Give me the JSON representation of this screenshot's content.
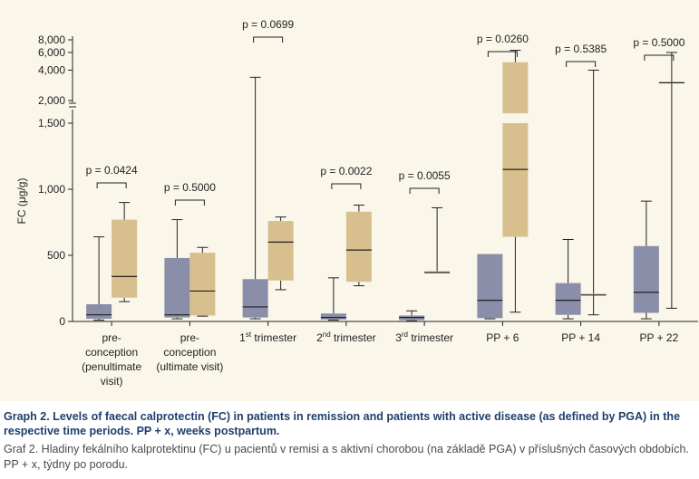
{
  "chart_data": {
    "type": "boxplot",
    "ylabel": "FC (μg/g)",
    "y_axis_break": true,
    "yticks": [
      "0",
      "500",
      "1,000",
      "1,500",
      "2,000",
      "4,000",
      "6,000",
      "8,000"
    ],
    "categories": [
      {
        "lines": [
          "pre-",
          "conception",
          "(penultimate",
          "visit)"
        ],
        "sup": ""
      },
      {
        "lines": [
          "pre-",
          "conception",
          "(ultimate visit)"
        ],
        "sup": ""
      },
      {
        "lines": [
          "1",
          "trimester"
        ],
        "sup": "st"
      },
      {
        "lines": [
          "2",
          "trimester"
        ],
        "sup": "nd"
      },
      {
        "lines": [
          "3",
          "trimester"
        ],
        "sup": "rd"
      },
      {
        "lines": [
          "PP + 6"
        ],
        "sup": ""
      },
      {
        "lines": [
          "PP + 14"
        ],
        "sup": ""
      },
      {
        "lines": [
          "PP + 22"
        ],
        "sup": ""
      }
    ],
    "p_values": [
      "p = 0.0424",
      "p = 0.5000",
      "p = 0.0699",
      "p = 0.0022",
      "p = 0.0055",
      "p = 0.0260",
      "p = 0.5385",
      "p = 0.5000"
    ],
    "series": [
      {
        "color": "#8a8ea8",
        "boxes": [
          {
            "min": 10,
            "q1": 20,
            "median": 50,
            "q3": 130,
            "max": 640
          },
          {
            "min": 20,
            "q1": 30,
            "median": 50,
            "q3": 480,
            "max": 770
          },
          {
            "min": 20,
            "q1": 30,
            "median": 110,
            "q3": 320,
            "max": 3400
          },
          {
            "min": 10,
            "q1": 15,
            "median": 30,
            "q3": 60,
            "max": 330
          },
          {
            "min": 5,
            "q1": 10,
            "median": 30,
            "q3": 45,
            "max": 80
          },
          {
            "min": 20,
            "q1": 25,
            "median": 160,
            "q3": 510,
            "max": null
          },
          {
            "min": 20,
            "q1": 50,
            "median": 160,
            "q3": 290,
            "max": 620
          },
          {
            "min": 20,
            "q1": 65,
            "median": 220,
            "q3": 570,
            "max": 910
          }
        ]
      },
      {
        "color": "#d8c08e",
        "boxes": [
          {
            "min": 150,
            "q1": 180,
            "median": 340,
            "q3": 770,
            "max": 900
          },
          {
            "min": 40,
            "q1": 45,
            "median": 230,
            "q3": 520,
            "max": 560
          },
          {
            "min": 240,
            "q1": 310,
            "median": 600,
            "q3": 760,
            "max": 790
          },
          {
            "min": 270,
            "q1": 300,
            "median": 540,
            "q3": 830,
            "max": 880
          },
          {
            "min": 370,
            "q1": 370,
            "median": 370,
            "q3": 380,
            "max": 860
          },
          {
            "min": 70,
            "q1": 640,
            "median": 1150,
            "q3": 4800,
            "max": 6300
          },
          {
            "min": 50,
            "q1": 200,
            "median": 200,
            "q3": 210,
            "max": 4000
          },
          {
            "min": 100,
            "q1": 3000,
            "median": 3000,
            "q3": 3050,
            "max": 6000
          }
        ]
      }
    ]
  },
  "caption": {
    "english": "Graph 2. Levels of faecal calprotectin (FC) in patients in remission and patients with active disease (as defined by PGA) in the respective time periods. PP + x, weeks postpartum.",
    "czech": "Graf 2. Hladiny fekálního kalprotektinu (FC) u pacientů v remisi a s aktivní chorobou (na základě PGA) v příslušných časových obdobích. PP + x, týdny po porodu."
  }
}
